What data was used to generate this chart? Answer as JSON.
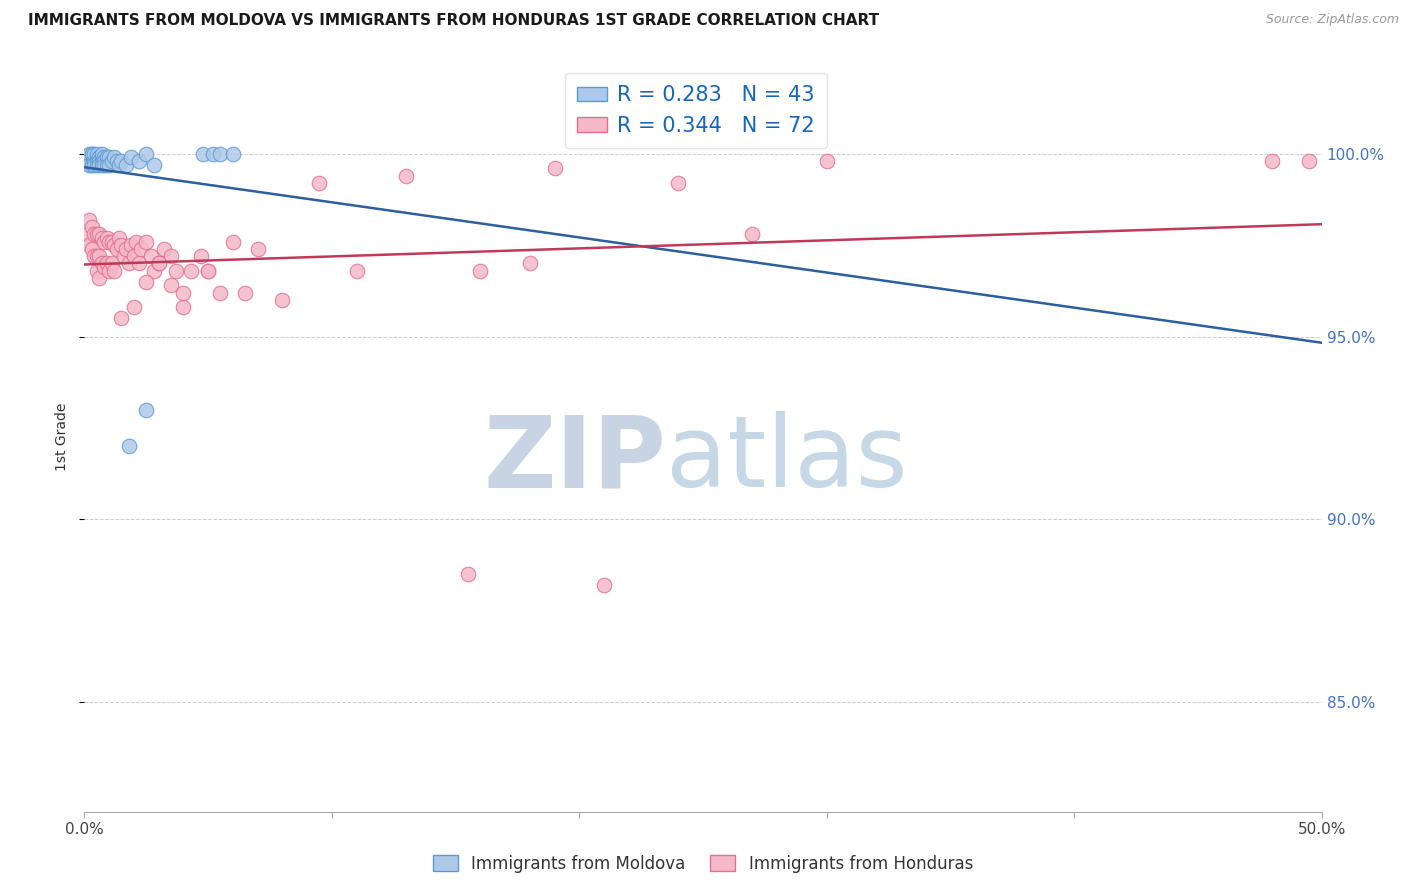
{
  "title": "IMMIGRANTS FROM MOLDOVA VS IMMIGRANTS FROM HONDURAS 1ST GRADE CORRELATION CHART",
  "source": "Source: ZipAtlas.com",
  "ylabel": "1st Grade",
  "xlim": [
    0.0,
    0.5
  ],
  "ylim": [
    0.82,
    1.025
  ],
  "ytick_positions": [
    0.85,
    0.9,
    0.95,
    1.0
  ],
  "ytick_labels": [
    "85.0%",
    "90.0%",
    "95.0%",
    "100.0%"
  ],
  "xtick_positions": [
    0.0,
    0.1,
    0.2,
    0.3,
    0.4,
    0.5
  ],
  "xtick_labels": [
    "0.0%",
    "",
    "",
    "",
    "",
    "50.0%"
  ],
  "moldova_color": "#aec8e8",
  "moldova_edge_color": "#5b9bd5",
  "honduras_color": "#f4b8c8",
  "honduras_edge_color": "#e07090",
  "moldova_line_color": "#2c5f9e",
  "honduras_line_color": "#c0385a",
  "moldova_R": 0.283,
  "moldova_N": 43,
  "honduras_R": 0.344,
  "honduras_N": 72,
  "legend_color": "#1565c0",
  "watermark_zip_color": "#c8d4e4",
  "watermark_atlas_color": "#b8cde0",
  "background_color": "#ffffff",
  "grid_color": "#cccccc",
  "moldova_x": [
    0.001,
    0.002,
    0.002,
    0.003,
    0.003,
    0.003,
    0.004,
    0.004,
    0.004,
    0.005,
    0.005,
    0.005,
    0.005,
    0.006,
    0.006,
    0.006,
    0.007,
    0.007,
    0.007,
    0.007,
    0.008,
    0.008,
    0.008,
    0.009,
    0.009,
    0.01,
    0.01,
    0.011,
    0.012,
    0.013,
    0.014,
    0.015,
    0.017,
    0.019,
    0.022,
    0.025,
    0.028,
    0.048,
    0.052,
    0.055,
    0.06,
    0.025,
    0.018
  ],
  "moldova_y": [
    0.998,
    1.0,
    0.997,
    1.0,
    0.997,
    1.0,
    0.998,
    1.0,
    0.997,
    0.999,
    0.998,
    0.997,
    1.0,
    0.999,
    0.998,
    0.997,
    0.999,
    0.998,
    0.997,
    1.0,
    0.999,
    0.998,
    0.997,
    0.999,
    0.997,
    0.999,
    0.997,
    0.998,
    0.999,
    0.998,
    0.997,
    0.998,
    0.997,
    0.999,
    0.998,
    1.0,
    0.997,
    1.0,
    1.0,
    1.0,
    1.0,
    0.93,
    0.92
  ],
  "honduras_x": [
    0.001,
    0.002,
    0.002,
    0.003,
    0.003,
    0.004,
    0.004,
    0.005,
    0.005,
    0.005,
    0.006,
    0.006,
    0.006,
    0.007,
    0.007,
    0.008,
    0.008,
    0.009,
    0.009,
    0.01,
    0.01,
    0.011,
    0.011,
    0.012,
    0.012,
    0.013,
    0.014,
    0.015,
    0.016,
    0.017,
    0.018,
    0.019,
    0.02,
    0.021,
    0.022,
    0.023,
    0.025,
    0.027,
    0.028,
    0.03,
    0.032,
    0.035,
    0.037,
    0.04,
    0.043,
    0.047,
    0.05,
    0.055,
    0.06,
    0.065,
    0.07,
    0.08,
    0.095,
    0.11,
    0.13,
    0.155,
    0.18,
    0.21,
    0.24,
    0.27,
    0.3,
    0.16,
    0.19,
    0.02,
    0.025,
    0.03,
    0.035,
    0.015,
    0.04,
    0.05,
    0.48,
    0.495
  ],
  "honduras_y": [
    0.978,
    0.982,
    0.975,
    0.98,
    0.974,
    0.978,
    0.972,
    0.978,
    0.972,
    0.968,
    0.978,
    0.972,
    0.966,
    0.977,
    0.97,
    0.976,
    0.969,
    0.977,
    0.97,
    0.976,
    0.968,
    0.976,
    0.97,
    0.975,
    0.968,
    0.974,
    0.977,
    0.975,
    0.972,
    0.974,
    0.97,
    0.975,
    0.972,
    0.976,
    0.97,
    0.974,
    0.976,
    0.972,
    0.968,
    0.97,
    0.974,
    0.972,
    0.968,
    0.958,
    0.968,
    0.972,
    0.968,
    0.962,
    0.976,
    0.962,
    0.974,
    0.96,
    0.992,
    0.968,
    0.994,
    0.885,
    0.97,
    0.882,
    0.992,
    0.978,
    0.998,
    0.968,
    0.996,
    0.958,
    0.965,
    0.97,
    0.964,
    0.955,
    0.962,
    0.968,
    0.998,
    0.998
  ]
}
